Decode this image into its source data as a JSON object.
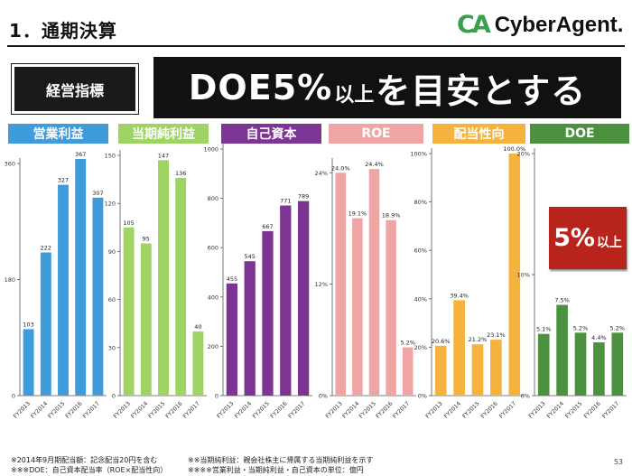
{
  "page_title": "1．通期決算",
  "logo": {
    "mark": "CA",
    "text": "CyberAgent."
  },
  "policy_label": "経営指標",
  "headline": {
    "part1": "DOE5%",
    "part2": "以上",
    "part3": "を目安とする"
  },
  "chart_data": [
    {
      "type": "bar",
      "title": "営業利益",
      "color": "#3f9bd9",
      "categories": [
        "FY2013",
        "FY2014",
        "FY2015",
        "FY2016",
        "FY2017"
      ],
      "values": [
        103,
        222,
        327,
        367,
        307
      ],
      "data_labels": [
        "103",
        "222",
        "327",
        "367",
        "307"
      ],
      "ylim": [
        0,
        360
      ],
      "y_ticks": [
        0,
        180,
        360
      ],
      "y_tick_labels": [
        "0",
        "180",
        "360"
      ]
    },
    {
      "type": "bar",
      "title": "当期純利益",
      "color": "#9fd465",
      "categories": [
        "FY2013",
        "FY2014",
        "FY2015",
        "FY2016",
        "FY2017"
      ],
      "values": [
        105,
        95,
        147,
        136,
        40
      ],
      "data_labels": [
        "105",
        "95",
        "147",
        "136",
        "40"
      ],
      "ylim": [
        0,
        150
      ],
      "y_ticks": [
        0,
        30,
        60,
        90,
        120,
        150
      ],
      "y_tick_labels": [
        "0",
        "30",
        "60",
        "90",
        "120",
        "150"
      ]
    },
    {
      "type": "bar",
      "title": "自己資本",
      "color": "#7c3593",
      "categories": [
        "FY2013",
        "FY2014",
        "FY2015",
        "FY2016",
        "FY2017"
      ],
      "values": [
        455,
        545,
        667,
        771,
        789
      ],
      "data_labels": [
        "455",
        "545",
        "667",
        "771",
        "789"
      ],
      "ylim": [
        0,
        1000
      ],
      "y_ticks": [
        0,
        200,
        400,
        600,
        800,
        1000
      ],
      "y_tick_labels": [
        "0",
        "200",
        "400",
        "600",
        "800",
        "1000"
      ]
    },
    {
      "type": "bar",
      "title": "ROE",
      "color": "#f0a5a5",
      "categories": [
        "FY2013",
        "FY2014",
        "FY2015",
        "FY2016",
        "FY2017"
      ],
      "values": [
        24.0,
        19.1,
        24.4,
        18.9,
        5.2
      ],
      "data_labels": [
        "24.0%",
        "19.1%",
        "24.4%",
        "18.9%",
        "5.2%"
      ],
      "ylim": [
        0,
        25
      ],
      "y_ticks": [
        0,
        12,
        24
      ],
      "y_tick_labels": [
        "0%",
        "12%",
        "24%"
      ]
    },
    {
      "type": "bar",
      "title": "配当性向",
      "color": "#f5b23c",
      "categories": [
        "FY2013",
        "FY2014",
        "FY2015",
        "FY2016",
        "FY2017"
      ],
      "values": [
        20.6,
        39.4,
        21.2,
        23.1,
        100.0
      ],
      "data_labels": [
        "20.6%",
        "39.4%",
        "21.2%",
        "23.1%",
        "100.0%"
      ],
      "ylim": [
        0,
        100
      ],
      "y_ticks": [
        0,
        20,
        40,
        60,
        80,
        100
      ],
      "y_tick_labels": [
        "0%",
        "20%",
        "40%",
        "60%",
        "80%",
        "100%"
      ]
    },
    {
      "type": "bar",
      "title": "DOE",
      "color": "#4c9140",
      "categories": [
        "FY2013",
        "FY2014",
        "FY2015",
        "FY2016",
        "FY2017"
      ],
      "values": [
        5.1,
        7.5,
        5.2,
        4.4,
        5.2
      ],
      "data_labels": [
        "5.1%",
        "7.5%",
        "5.2%",
        "4.4%",
        "5.2%"
      ],
      "ylim": [
        0,
        20
      ],
      "y_ticks": [
        0,
        10,
        20
      ],
      "y_tick_labels": [
        "0%",
        "10%",
        "20%"
      ]
    }
  ],
  "doe_badge": {
    "main": "5%",
    "suffix": "以上"
  },
  "footnotes": {
    "left1": "※2014年9月期配当額：記念配当20円を含む",
    "left2": "※※※DOE：自己資本配当率（ROE×配当性向）",
    "right1": "※※当期純利益：親会社株主に帰属する当期純利益を示す",
    "right2": "※※※※営業利益・当期純利益・自己資本の単位：億円"
  },
  "page_number": "53"
}
